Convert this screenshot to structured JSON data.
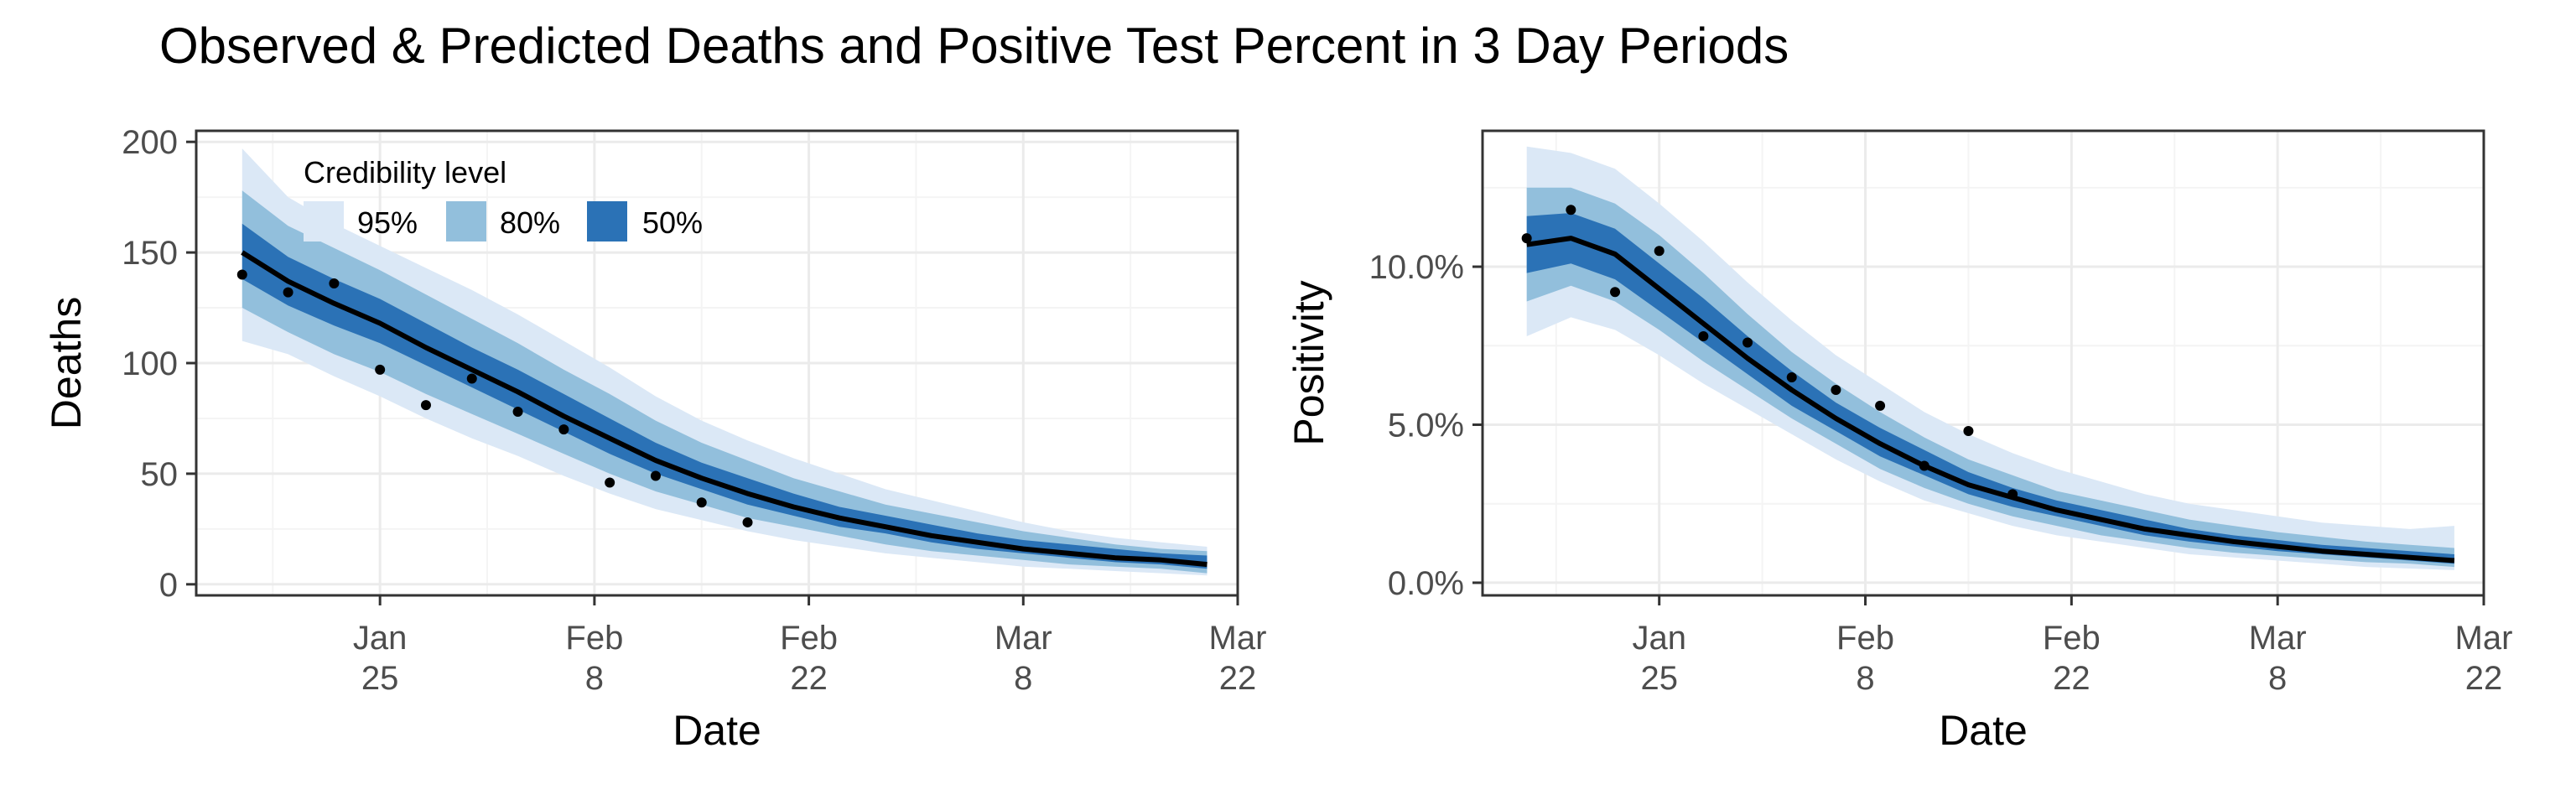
{
  "title": "Observed & Predicted Deaths and Positive Test Percent in 3 Day Periods",
  "colors": {
    "band95": "#dbe8f6",
    "band80": "#92bfdc",
    "band50": "#2b72b6",
    "median": "#000000",
    "points": "#000000",
    "grid_major": "#ebebeb",
    "grid_minor": "#f4f4f4",
    "panel_border": "#333333"
  },
  "legend": {
    "title": "Credibility level",
    "items": [
      {
        "label": "95%",
        "color": "#dbe8f6"
      },
      {
        "label": "80%",
        "color": "#92bfdc"
      },
      {
        "label": "50%",
        "color": "#2b72b6"
      }
    ],
    "placement": "top-left inside left panel"
  },
  "chart_data": [
    {
      "type": "area",
      "xlabel": "Date",
      "ylabel": "Deaths",
      "xlim": [
        "2021-01-13",
        "2021-03-22"
      ],
      "ylim": [
        -5,
        205
      ],
      "x_ticks": [
        {
          "date": "2021-01-25",
          "line1": "Jan",
          "line2": "25"
        },
        {
          "date": "2021-02-08",
          "line1": "Feb",
          "line2": "8"
        },
        {
          "date": "2021-02-22",
          "line1": "Feb",
          "line2": "22"
        },
        {
          "date": "2021-03-08",
          "line1": "Mar",
          "line2": "8"
        },
        {
          "date": "2021-03-22",
          "line1": "Mar",
          "line2": "22"
        }
      ],
      "y_ticks": [
        {
          "value": 0,
          "label": "0"
        },
        {
          "value": 50,
          "label": "50"
        },
        {
          "value": 100,
          "label": "100"
        },
        {
          "value": 150,
          "label": "150"
        },
        {
          "value": 200,
          "label": "200"
        }
      ],
      "grid": true,
      "bands": {
        "x": [
          "2021-01-16",
          "2021-01-19",
          "2021-01-22",
          "2021-01-25",
          "2021-01-28",
          "2021-01-31",
          "2021-02-03",
          "2021-02-06",
          "2021-02-09",
          "2021-02-12",
          "2021-02-15",
          "2021-02-18",
          "2021-02-21",
          "2021-02-24",
          "2021-02-27",
          "2021-03-02",
          "2021-03-05",
          "2021-03-08",
          "2021-03-11",
          "2021-03-14",
          "2021-03-17",
          "2021-03-20"
        ],
        "median": [
          150,
          137,
          127,
          118,
          107,
          97,
          87,
          76,
          66,
          56,
          48,
          41,
          35,
          30,
          26,
          22,
          19,
          16,
          14,
          12,
          11,
          9
        ],
        "lo50": [
          138,
          126,
          117,
          109,
          99,
          89,
          79,
          69,
          59,
          50,
          43,
          36,
          31,
          26,
          23,
          19,
          16,
          14,
          12,
          10,
          9,
          7
        ],
        "hi50": [
          163,
          148,
          138,
          129,
          118,
          107,
          97,
          86,
          75,
          64,
          55,
          48,
          41,
          35,
          31,
          27,
          23,
          20,
          18,
          16,
          14,
          13
        ],
        "lo80": [
          125,
          114,
          104,
          96,
          86,
          77,
          68,
          59,
          50,
          42,
          36,
          30,
          26,
          22,
          18,
          15,
          13,
          11,
          9,
          8,
          7,
          5
        ],
        "hi80": [
          178,
          162,
          152,
          142,
          131,
          120,
          109,
          97,
          86,
          74,
          64,
          56,
          48,
          42,
          36,
          32,
          28,
          24,
          21,
          18,
          16,
          15
        ],
        "lo95": [
          110,
          104,
          94,
          85,
          75,
          66,
          58,
          49,
          41,
          34,
          29,
          24,
          20,
          17,
          14,
          12,
          10,
          8,
          7,
          6,
          5,
          4
        ],
        "hi95": [
          197,
          175,
          163,
          153,
          143,
          133,
          122,
          110,
          98,
          85,
          74,
          65,
          57,
          50,
          43,
          38,
          33,
          28,
          24,
          21,
          19,
          17
        ]
      },
      "observed": {
        "x": [
          "2021-01-16",
          "2021-01-19",
          "2021-01-22",
          "2021-01-25",
          "2021-01-28",
          "2021-01-31",
          "2021-02-03",
          "2021-02-06",
          "2021-02-09",
          "2021-02-12",
          "2021-02-15",
          "2021-02-18"
        ],
        "y": [
          140,
          132,
          136,
          97,
          81,
          93,
          78,
          70,
          46,
          49,
          37,
          28
        ]
      }
    },
    {
      "type": "area",
      "xlabel": "Date",
      "ylabel": "Positivity",
      "xlim": [
        "2021-01-13",
        "2021-03-22"
      ],
      "ylim": [
        -0.4,
        14.3
      ],
      "x_ticks": [
        {
          "date": "2021-01-25",
          "line1": "Jan",
          "line2": "25"
        },
        {
          "date": "2021-02-08",
          "line1": "Feb",
          "line2": "8"
        },
        {
          "date": "2021-02-22",
          "line1": "Feb",
          "line2": "22"
        },
        {
          "date": "2021-03-08",
          "line1": "Mar",
          "line2": "8"
        },
        {
          "date": "2021-03-22",
          "line1": "Mar",
          "line2": "22"
        }
      ],
      "y_ticks": [
        {
          "value": 0,
          "label": "0.0%"
        },
        {
          "value": 5,
          "label": "5.0%"
        },
        {
          "value": 10,
          "label": "10.0%"
        }
      ],
      "grid": true,
      "bands": {
        "x": [
          "2021-01-16",
          "2021-01-19",
          "2021-01-22",
          "2021-01-25",
          "2021-01-28",
          "2021-01-31",
          "2021-02-03",
          "2021-02-06",
          "2021-02-09",
          "2021-02-12",
          "2021-02-15",
          "2021-02-18",
          "2021-02-21",
          "2021-02-24",
          "2021-02-27",
          "2021-03-02",
          "2021-03-05",
          "2021-03-08",
          "2021-03-11",
          "2021-03-14",
          "2021-03-17",
          "2021-03-20"
        ],
        "median": [
          10.7,
          10.9,
          10.4,
          9.3,
          8.2,
          7.1,
          6.1,
          5.2,
          4.4,
          3.7,
          3.1,
          2.7,
          2.3,
          2.0,
          1.7,
          1.5,
          1.3,
          1.15,
          1.0,
          0.9,
          0.8,
          0.7
        ],
        "lo50": [
          9.8,
          10.1,
          9.6,
          8.6,
          7.6,
          6.6,
          5.6,
          4.8,
          4.0,
          3.4,
          2.8,
          2.4,
          2.1,
          1.8,
          1.5,
          1.3,
          1.15,
          1.0,
          0.9,
          0.8,
          0.7,
          0.6
        ],
        "hi50": [
          11.6,
          11.7,
          11.2,
          10.1,
          9.0,
          7.8,
          6.7,
          5.7,
          4.9,
          4.2,
          3.5,
          3.0,
          2.6,
          2.3,
          2.0,
          1.7,
          1.5,
          1.35,
          1.2,
          1.1,
          1.0,
          0.9
        ],
        "lo80": [
          8.9,
          9.4,
          8.9,
          8.0,
          7.0,
          6.1,
          5.2,
          4.4,
          3.6,
          3.0,
          2.5,
          2.1,
          1.8,
          1.5,
          1.3,
          1.1,
          0.95,
          0.85,
          0.75,
          0.65,
          0.6,
          0.5
        ],
        "hi80": [
          12.5,
          12.5,
          12.0,
          11.0,
          9.8,
          8.5,
          7.3,
          6.3,
          5.4,
          4.6,
          3.9,
          3.4,
          2.9,
          2.6,
          2.3,
          2.0,
          1.8,
          1.6,
          1.45,
          1.3,
          1.2,
          1.1
        ],
        "lo95": [
          7.8,
          8.4,
          8.0,
          7.2,
          6.3,
          5.5,
          4.7,
          3.9,
          3.2,
          2.6,
          2.2,
          1.8,
          1.5,
          1.3,
          1.1,
          0.9,
          0.8,
          0.7,
          0.6,
          0.5,
          0.45,
          0.4
        ],
        "hi95": [
          13.8,
          13.6,
          13.1,
          12.0,
          10.8,
          9.5,
          8.3,
          7.2,
          6.3,
          5.4,
          4.7,
          4.1,
          3.6,
          3.2,
          2.8,
          2.5,
          2.3,
          2.1,
          1.9,
          1.8,
          1.7,
          1.8
        ]
      },
      "observed": {
        "x": [
          "2021-01-16",
          "2021-01-19",
          "2021-01-22",
          "2021-01-25",
          "2021-01-28",
          "2021-01-31",
          "2021-02-03",
          "2021-02-06",
          "2021-02-09",
          "2021-02-12",
          "2021-02-15",
          "2021-02-18"
        ],
        "y": [
          10.9,
          11.8,
          9.2,
          10.5,
          7.8,
          7.6,
          6.5,
          6.1,
          5.6,
          3.7,
          4.8,
          2.8
        ]
      }
    }
  ]
}
